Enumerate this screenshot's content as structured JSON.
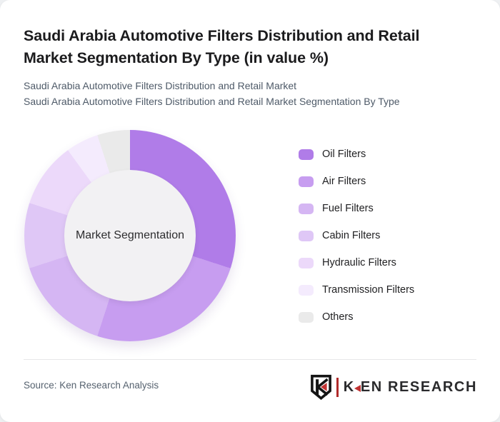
{
  "header": {
    "title": "Saudi Arabia Automotive Filters Distribution and Retail Market Segmentation By Type (in value %)",
    "subtitle1": "Saudi Arabia Automotive Filters Distribution and Retail Market",
    "subtitle2": "Saudi Arabia Automotive Filters Distribution and Retail Market Segmentation By Type"
  },
  "chart_data": {
    "type": "pie",
    "style": "donut",
    "title": "Saudi Arabia Automotive Filters Distribution and Retail Market Segmentation By Type (in value %)",
    "unit": "value %",
    "center_label": "Market Segmentation",
    "categories": [
      "Oil Filters",
      "Air Filters",
      "Fuel Filters",
      "Cabin Filters",
      "Hydraulic Filters",
      "Transmission Filters",
      "Others"
    ],
    "values": [
      30,
      25,
      15,
      10,
      10,
      5,
      5
    ],
    "colors": [
      "#b07ce8",
      "#c79df0",
      "#d5b6f3",
      "#dfc7f6",
      "#ecd9fa",
      "#f4ebfd",
      "#eaeaea"
    ],
    "start_angle_deg": 0,
    "direction": "clockwise",
    "legend_position": "right",
    "inner_circle_color": "#f2f1f3"
  },
  "footer": {
    "source": "Source: Ken Research Analysis",
    "brand_k": "K",
    "brand_rest": "EN RESEARCH",
    "accent_color": "#c13232"
  }
}
